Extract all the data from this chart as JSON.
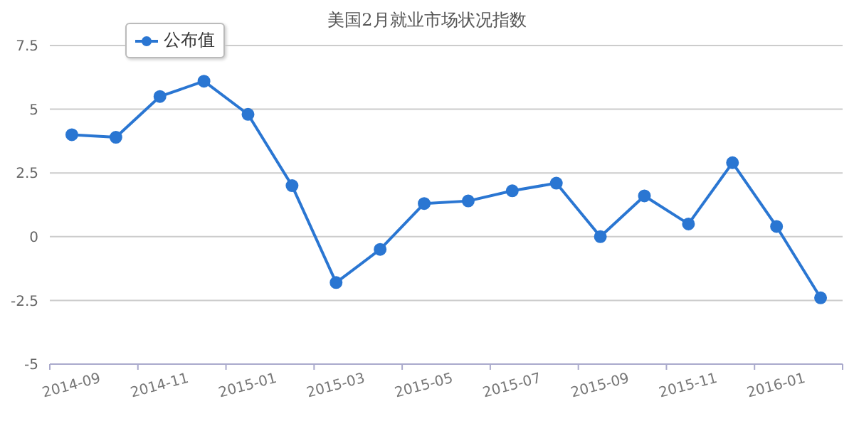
{
  "chart_data": {
    "type": "line",
    "title": "美国2月就业市场状况指数",
    "categories": [
      "2014-09",
      null,
      "2014-11",
      null,
      "2015-01",
      null,
      "2015-03",
      null,
      "2015-05",
      null,
      "2015-07",
      null,
      "2015-09",
      null,
      "2015-11",
      null,
      "2016-01",
      null
    ],
    "series": [
      {
        "name": "公布值",
        "color": "#2a76d2",
        "values": [
          4.0,
          3.9,
          5.5,
          6.1,
          4.8,
          2.0,
          -1.8,
          -0.5,
          1.3,
          1.4,
          1.8,
          2.1,
          0.0,
          1.6,
          0.5,
          2.9,
          0.4,
          -2.4
        ]
      }
    ],
    "ylim": [
      -5,
      7.5
    ],
    "yticks": [
      -5,
      -2.5,
      0,
      2.5,
      5,
      7.5
    ],
    "grid": "y",
    "legend": "top left",
    "marker": "circle",
    "line_style": "solid"
  }
}
